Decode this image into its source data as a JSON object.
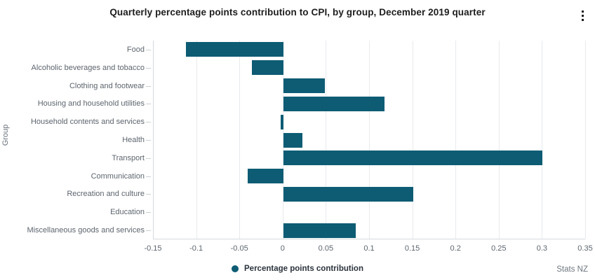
{
  "header": {
    "title": "Quarterly percentage points contribution to CPI, by group, December 2019 quarter"
  },
  "chart_data": {
    "type": "bar",
    "orientation": "horizontal",
    "title": "Quarterly percentage points contribution to CPI, by group, December 2019 quarter",
    "xlabel": "",
    "ylabel": "Group",
    "categories": [
      "Food",
      "Alcoholic beverages and tobacco",
      "Clothing and footwear",
      "Housing and household utilities",
      "Household contents and services",
      "Health",
      "Transport",
      "Communication",
      "Recreation and culture",
      "Education",
      "Miscellaneous goods and services"
    ],
    "values": [
      -0.113,
      -0.036,
      0.048,
      0.117,
      -0.003,
      0.022,
      0.3,
      -0.041,
      0.15,
      0,
      0.084
    ],
    "xlim": [
      -0.15,
      0.35
    ],
    "xticks": [
      -0.15,
      -0.1,
      -0.05,
      0,
      0.05,
      0.1,
      0.15,
      0.2,
      0.25,
      0.3,
      0.35
    ],
    "xtick_labels": [
      "-0.15",
      "-0.1",
      "-0.05",
      "0",
      "0.05",
      "0.1",
      "0.15",
      "0.2",
      "0.25",
      "0.3",
      "0.35"
    ],
    "grid": true,
    "bar_color": "#0d5c74",
    "legend": {
      "position": "bottom",
      "items": [
        {
          "label": "Percentage points contribution",
          "color": "#0d5c74"
        }
      ]
    }
  },
  "footer": {
    "source": "Stats NZ"
  },
  "icons": {
    "menu": "kebab-menu-icon"
  },
  "colors": {
    "bar": "#0d5c74",
    "gridline": "#e8eaee",
    "axis": "#d5d9de",
    "label_text": "#5d656e",
    "title_text": "#1d1d1d"
  }
}
